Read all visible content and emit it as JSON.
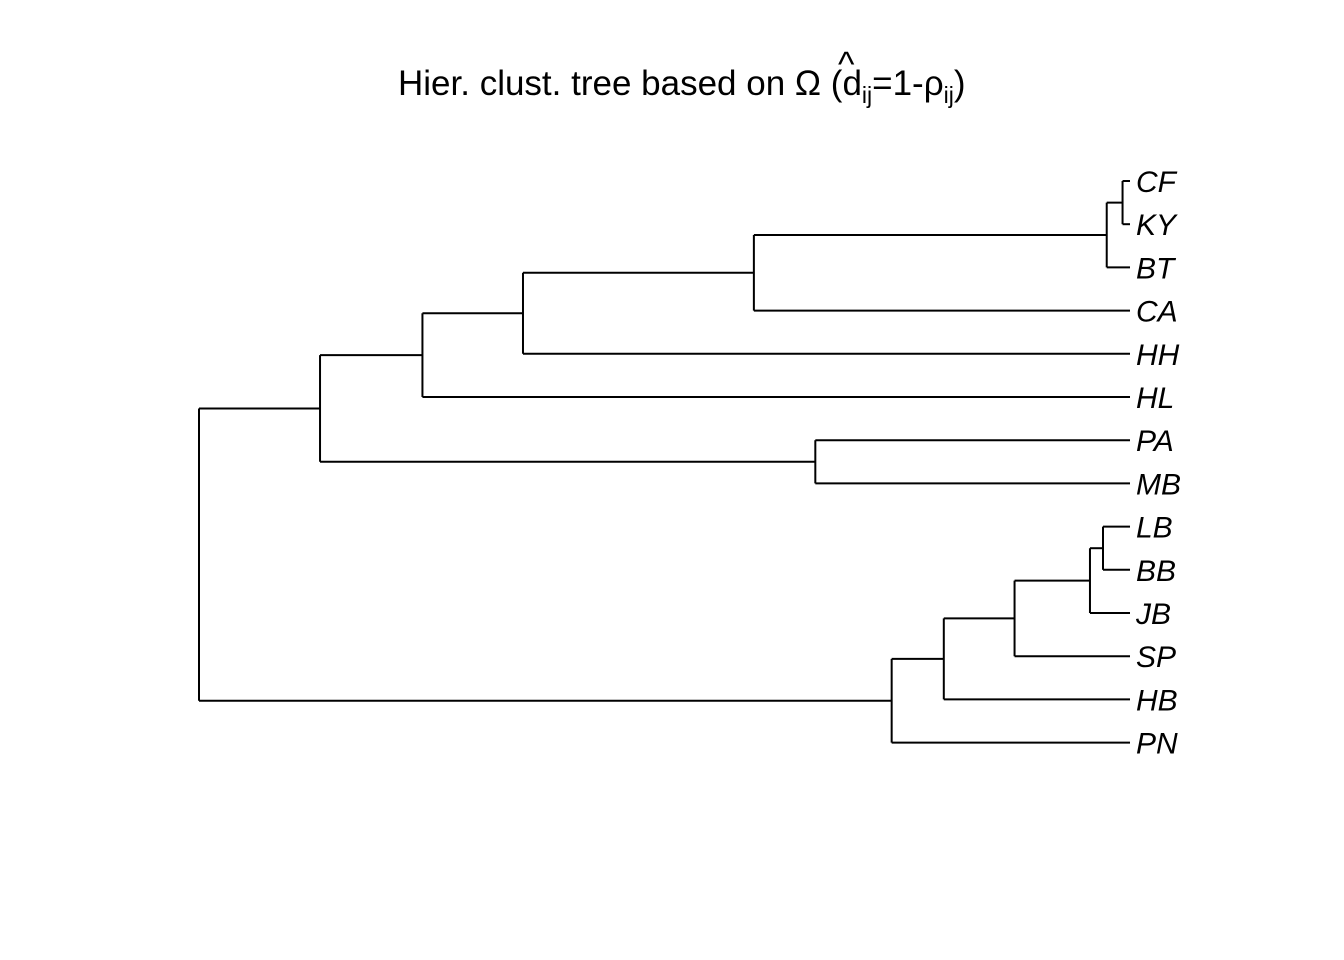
{
  "title": {
    "prefix": "Hier. clust. tree based on ",
    "symbol": "Ω",
    "hat": "^",
    "open": " (d",
    "sub1": "ij",
    "mid": "=1-ρ",
    "sub2": "ij",
    "close": ")"
  },
  "colors": {
    "line": "#000000",
    "background": "#ffffff"
  },
  "tree": {
    "children": [
      {
        "height": 0.87,
        "children": [
          {
            "height": 0.76,
            "children": [
              {
                "height": 0.652,
                "children": [
                  {
                    "height": 0.404,
                    "children": [
                      {
                        "height": 0.025,
                        "children": [
                          {
                            "height": 0.008,
                            "children": [
                              {
                                "label": "CF"
                              },
                              {
                                "label": "KY"
                              }
                            ]
                          },
                          {
                            "label": "BT"
                          }
                        ]
                      },
                      {
                        "label": "CA"
                      }
                    ]
                  },
                  {
                    "label": "HH"
                  }
                ]
              },
              {
                "label": "HL"
              }
            ]
          },
          {
            "height": 0.338,
            "children": [
              {
                "label": "PA"
              },
              {
                "label": "MB"
              }
            ]
          }
        ]
      },
      {
        "height": 0.256,
        "children": [
          {
            "height": 0.2,
            "children": [
              {
                "height": 0.124,
                "children": [
                  {
                    "height": 0.043,
                    "children": [
                      {
                        "height": 0.029,
                        "children": [
                          {
                            "label": "LB"
                          },
                          {
                            "label": "BB"
                          }
                        ]
                      },
                      {
                        "label": "JB"
                      }
                    ]
                  },
                  {
                    "label": "SP"
                  }
                ]
              },
              {
                "label": "HB"
              }
            ]
          },
          {
            "label": "PN"
          }
        ]
      }
    ],
    "height": 1.0
  }
}
